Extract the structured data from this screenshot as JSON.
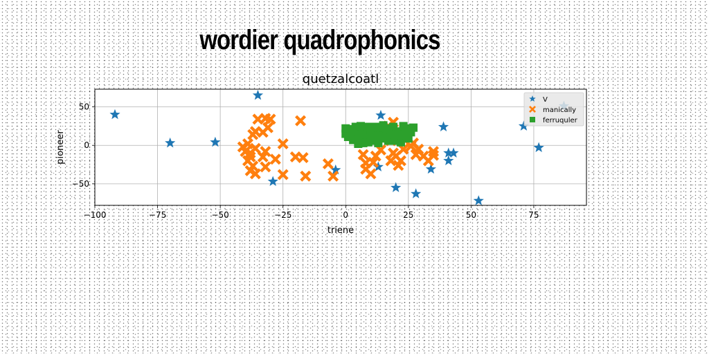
{
  "figure_title": "wordier quadrophonics",
  "chart_data": {
    "type": "scatter",
    "title": "quetzalcoatl",
    "xlabel": "triene",
    "ylabel": "pioneer",
    "xlim": [
      -100,
      96
    ],
    "ylim": [
      -78,
      73
    ],
    "xticks": [
      -100,
      -75,
      -50,
      -25,
      0,
      25,
      50,
      75
    ],
    "xtick_labels": [
      "−100",
      "−75",
      "−50",
      "−25",
      "0",
      "25",
      "50",
      "75"
    ],
    "yticks": [
      -50,
      0,
      50
    ],
    "ytick_labels": [
      "−50",
      "0",
      "50"
    ],
    "grid": true,
    "legend_position": "top-right",
    "series": [
      {
        "name": "V",
        "marker": "star",
        "color": "#1f77b4",
        "points": [
          [
            -92,
            40
          ],
          [
            -70,
            3
          ],
          [
            -52,
            4
          ],
          [
            -35,
            65
          ],
          [
            -29,
            -47
          ],
          [
            -4,
            -32
          ],
          [
            13,
            -28
          ],
          [
            14,
            39
          ],
          [
            20,
            -55
          ],
          [
            28,
            -63
          ],
          [
            34,
            -31
          ],
          [
            39,
            24
          ],
          [
            41,
            -10
          ],
          [
            41,
            -20
          ],
          [
            43,
            -10
          ],
          [
            53,
            -72
          ],
          [
            71,
            25
          ],
          [
            77,
            -3
          ],
          [
            87,
            51
          ]
        ]
      },
      {
        "name": "manically",
        "marker": "x",
        "color": "#ff7f0e",
        "points": [
          [
            -35,
            34
          ],
          [
            -32,
            35
          ],
          [
            -30,
            34
          ],
          [
            -31,
            23
          ],
          [
            -33,
            17
          ],
          [
            -36,
            18
          ],
          [
            -37,
            14
          ],
          [
            -39,
            2
          ],
          [
            -41,
            -2
          ],
          [
            -40,
            -8
          ],
          [
            -38,
            -10
          ],
          [
            -36,
            -4
          ],
          [
            -38,
            -15
          ],
          [
            -39,
            -20
          ],
          [
            -37,
            -27
          ],
          [
            -38,
            -33
          ],
          [
            -36,
            -37
          ],
          [
            -33,
            -15
          ],
          [
            -32,
            -8
          ],
          [
            -28,
            -18
          ],
          [
            -25,
            -38
          ],
          [
            -32,
            -28
          ],
          [
            -25,
            2
          ],
          [
            -20,
            -15
          ],
          [
            -18,
            32
          ],
          [
            -17,
            -16
          ],
          [
            -16,
            -40
          ],
          [
            -7,
            -24
          ],
          [
            -5,
            -40
          ],
          [
            7,
            -12
          ],
          [
            8,
            -23
          ],
          [
            8,
            -31
          ],
          [
            10,
            -37
          ],
          [
            11,
            -22
          ],
          [
            12,
            -14
          ],
          [
            17,
            25
          ],
          [
            18,
            6
          ],
          [
            19,
            -10
          ],
          [
            18,
            -20
          ],
          [
            20,
            -14
          ],
          [
            21,
            -26
          ],
          [
            22,
            -20
          ],
          [
            23,
            -5
          ],
          [
            26,
            -1
          ],
          [
            27,
            3
          ],
          [
            29,
            -5
          ],
          [
            28,
            -12
          ],
          [
            31,
            -14
          ],
          [
            33,
            -20
          ],
          [
            35,
            -13
          ],
          [
            35,
            -8
          ],
          [
            19,
            30
          ],
          [
            14,
            -6
          ]
        ]
      },
      {
        "name": "ferruquler",
        "marker": "square",
        "color": "#2ca02c",
        "points": [
          [
            0,
            15
          ],
          [
            0,
            22
          ],
          [
            2,
            12
          ],
          [
            3,
            18
          ],
          [
            4,
            24
          ],
          [
            3,
            7
          ],
          [
            5,
            2
          ],
          [
            6,
            14
          ],
          [
            7,
            19
          ],
          [
            6,
            25
          ],
          [
            8,
            10
          ],
          [
            9,
            4
          ],
          [
            10,
            20
          ],
          [
            11,
            15
          ],
          [
            12,
            24
          ],
          [
            12,
            8
          ],
          [
            13,
            3
          ],
          [
            14,
            18
          ],
          [
            15,
            12
          ],
          [
            16,
            22
          ],
          [
            17,
            6
          ],
          [
            18,
            16
          ],
          [
            19,
            24
          ],
          [
            20,
            10
          ],
          [
            21,
            18
          ],
          [
            22,
            4
          ],
          [
            23,
            14
          ],
          [
            24,
            22
          ],
          [
            25,
            9
          ],
          [
            26,
            17
          ],
          [
            27,
            23
          ],
          [
            5,
            8
          ],
          [
            9,
            24
          ],
          [
            13,
            12
          ],
          [
            17,
            20
          ],
          [
            21,
            13
          ],
          [
            25,
            19
          ],
          [
            1,
            11
          ],
          [
            15,
            26
          ],
          [
            19,
            6
          ],
          [
            11,
            6
          ],
          [
            7,
            3
          ],
          [
            23,
            25
          ],
          [
            3,
            21
          ],
          [
            18,
            14
          ],
          [
            10,
            12
          ],
          [
            16,
            9
          ],
          [
            24,
            13
          ]
        ]
      }
    ]
  }
}
